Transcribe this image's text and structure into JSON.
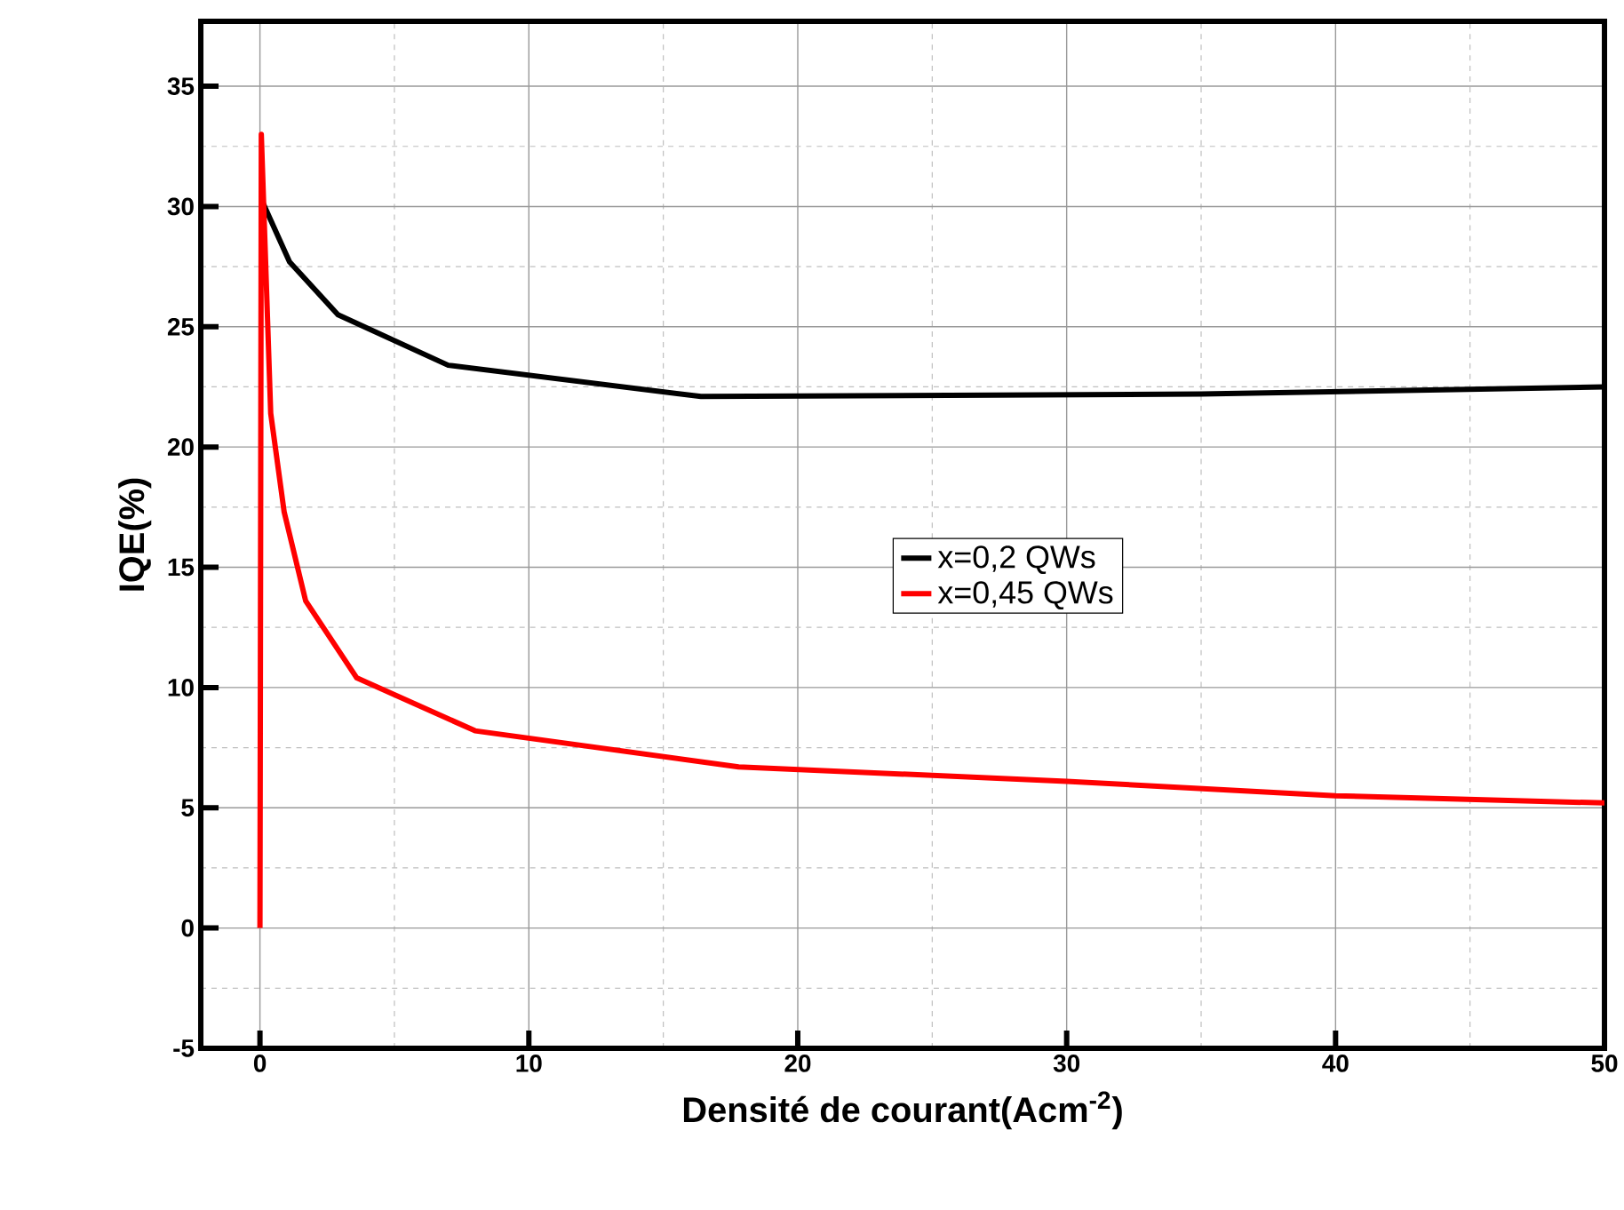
{
  "chart_data": {
    "type": "line",
    "xlabel": "Densité de courant(Acm$^{-2}$)",
    "ylabel": "IQE(%)",
    "xlim": [
      -2.2,
      50
    ],
    "ylim": [
      -5,
      37.7
    ],
    "xticks": [
      0,
      10,
      20,
      30,
      40,
      50
    ],
    "yticks": [
      -5,
      0,
      5,
      10,
      15,
      20,
      25,
      30,
      35
    ],
    "grid": true,
    "legend": "right",
    "line_style": "solid",
    "marker": "none",
    "series": [
      {
        "name": "x=0,2  QWs",
        "color": "#000000",
        "x": [
          0.05,
          1.1,
          2.9,
          7.0,
          16.4,
          35,
          50
        ],
        "values": [
          30.3,
          27.7,
          25.5,
          23.4,
          22.1,
          22.2,
          22.5
        ]
      },
      {
        "name": "x=0,45 QWs",
        "color": "#ff0000",
        "x": [
          0,
          0.05,
          0.4,
          0.9,
          1.7,
          3.6,
          8,
          17.8,
          30,
          40,
          50
        ],
        "values": [
          0,
          33,
          21.4,
          17.3,
          13.6,
          10.4,
          8.2,
          6.7,
          6.1,
          5.5,
          5.2
        ]
      }
    ]
  }
}
